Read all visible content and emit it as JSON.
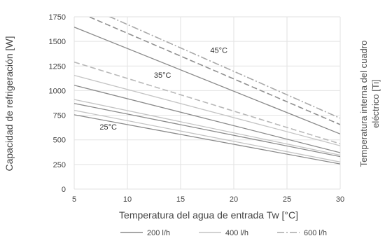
{
  "chart_data": {
    "type": "line",
    "xlabel": "Temperatura del agua de entrada Tw [°C]",
    "ylabel": "Capacidad de refrigeración [W]",
    "y2label_line1": "Temperatura interna del cuadro",
    "y2label_line2": "eléctrico [Ti]",
    "xlim": [
      5,
      30
    ],
    "ylim": [
      0,
      1750
    ],
    "xticks": [
      5,
      10,
      15,
      20,
      25,
      30
    ],
    "yticks": [
      0,
      250,
      500,
      750,
      1000,
      1250,
      1500,
      1750
    ],
    "grid": true,
    "legend_position": "bottom",
    "legend": [
      {
        "label": "200 l/h",
        "style": "solid",
        "color": "#8a8a8a"
      },
      {
        "label": "400 l/h",
        "style": "solid",
        "color": "#c4c4c4"
      },
      {
        "label": "600 l/h",
        "style": "dashdot",
        "color": "#a8a8a8"
      }
    ],
    "annotations": [
      {
        "text": "25°C",
        "x": 8.2,
        "y": 605
      },
      {
        "text": "35°C",
        "x": 13.3,
        "y": 1130
      },
      {
        "text": "45°C",
        "x": 18.6,
        "y": 1385
      }
    ],
    "series": [
      {
        "group": "25°C",
        "flow": "200 l/h",
        "style": "solid",
        "color": "#8a8a8a",
        "x": [
          5,
          30
        ],
        "y": [
          755,
          255
        ]
      },
      {
        "group": "25°C",
        "flow": "400 l/h",
        "style": "solid",
        "color": "#c4c4c4",
        "x": [
          5,
          30
        ],
        "y": [
          800,
          275
        ]
      },
      {
        "group": "25°C",
        "flow": "200 l/h",
        "style": "solid",
        "color": "#8a8a8a",
        "x": [
          5,
          30
        ],
        "y": [
          870,
          330
        ]
      },
      {
        "group": "25°C",
        "flow": "400 l/h",
        "style": "solid",
        "color": "#c4c4c4",
        "x": [
          5,
          30
        ],
        "y": [
          910,
          345
        ]
      },
      {
        "group": "35°C",
        "flow": "200 l/h",
        "style": "solid",
        "color": "#8a8a8a",
        "x": [
          5,
          30
        ],
        "y": [
          1055,
          370
        ]
      },
      {
        "group": "35°C",
        "flow": "400 l/h",
        "style": "solid",
        "color": "#c4c4c4",
        "x": [
          5,
          30
        ],
        "y": [
          1155,
          440
        ]
      },
      {
        "group": "35°C",
        "flow": "600 l/h",
        "style": "dashed",
        "color": "#b8b8b8",
        "x": [
          5,
          30
        ],
        "y": [
          1290,
          460
        ]
      },
      {
        "group": "45°C",
        "flow": "200 l/h",
        "style": "solid",
        "color": "#8a8a8a",
        "x": [
          5,
          30
        ],
        "y": [
          1645,
          560
        ]
      },
      {
        "group": "45°C",
        "flow": "400 l/h",
        "style": "dashed",
        "color": "#909090",
        "x": [
          5,
          30
        ],
        "y": [
          1815,
          655
        ]
      },
      {
        "group": "45°C",
        "flow": "600 l/h",
        "style": "dashdot",
        "color": "#a8a8a8",
        "x": [
          5,
          30
        ],
        "y": [
          1910,
          720
        ]
      }
    ]
  }
}
